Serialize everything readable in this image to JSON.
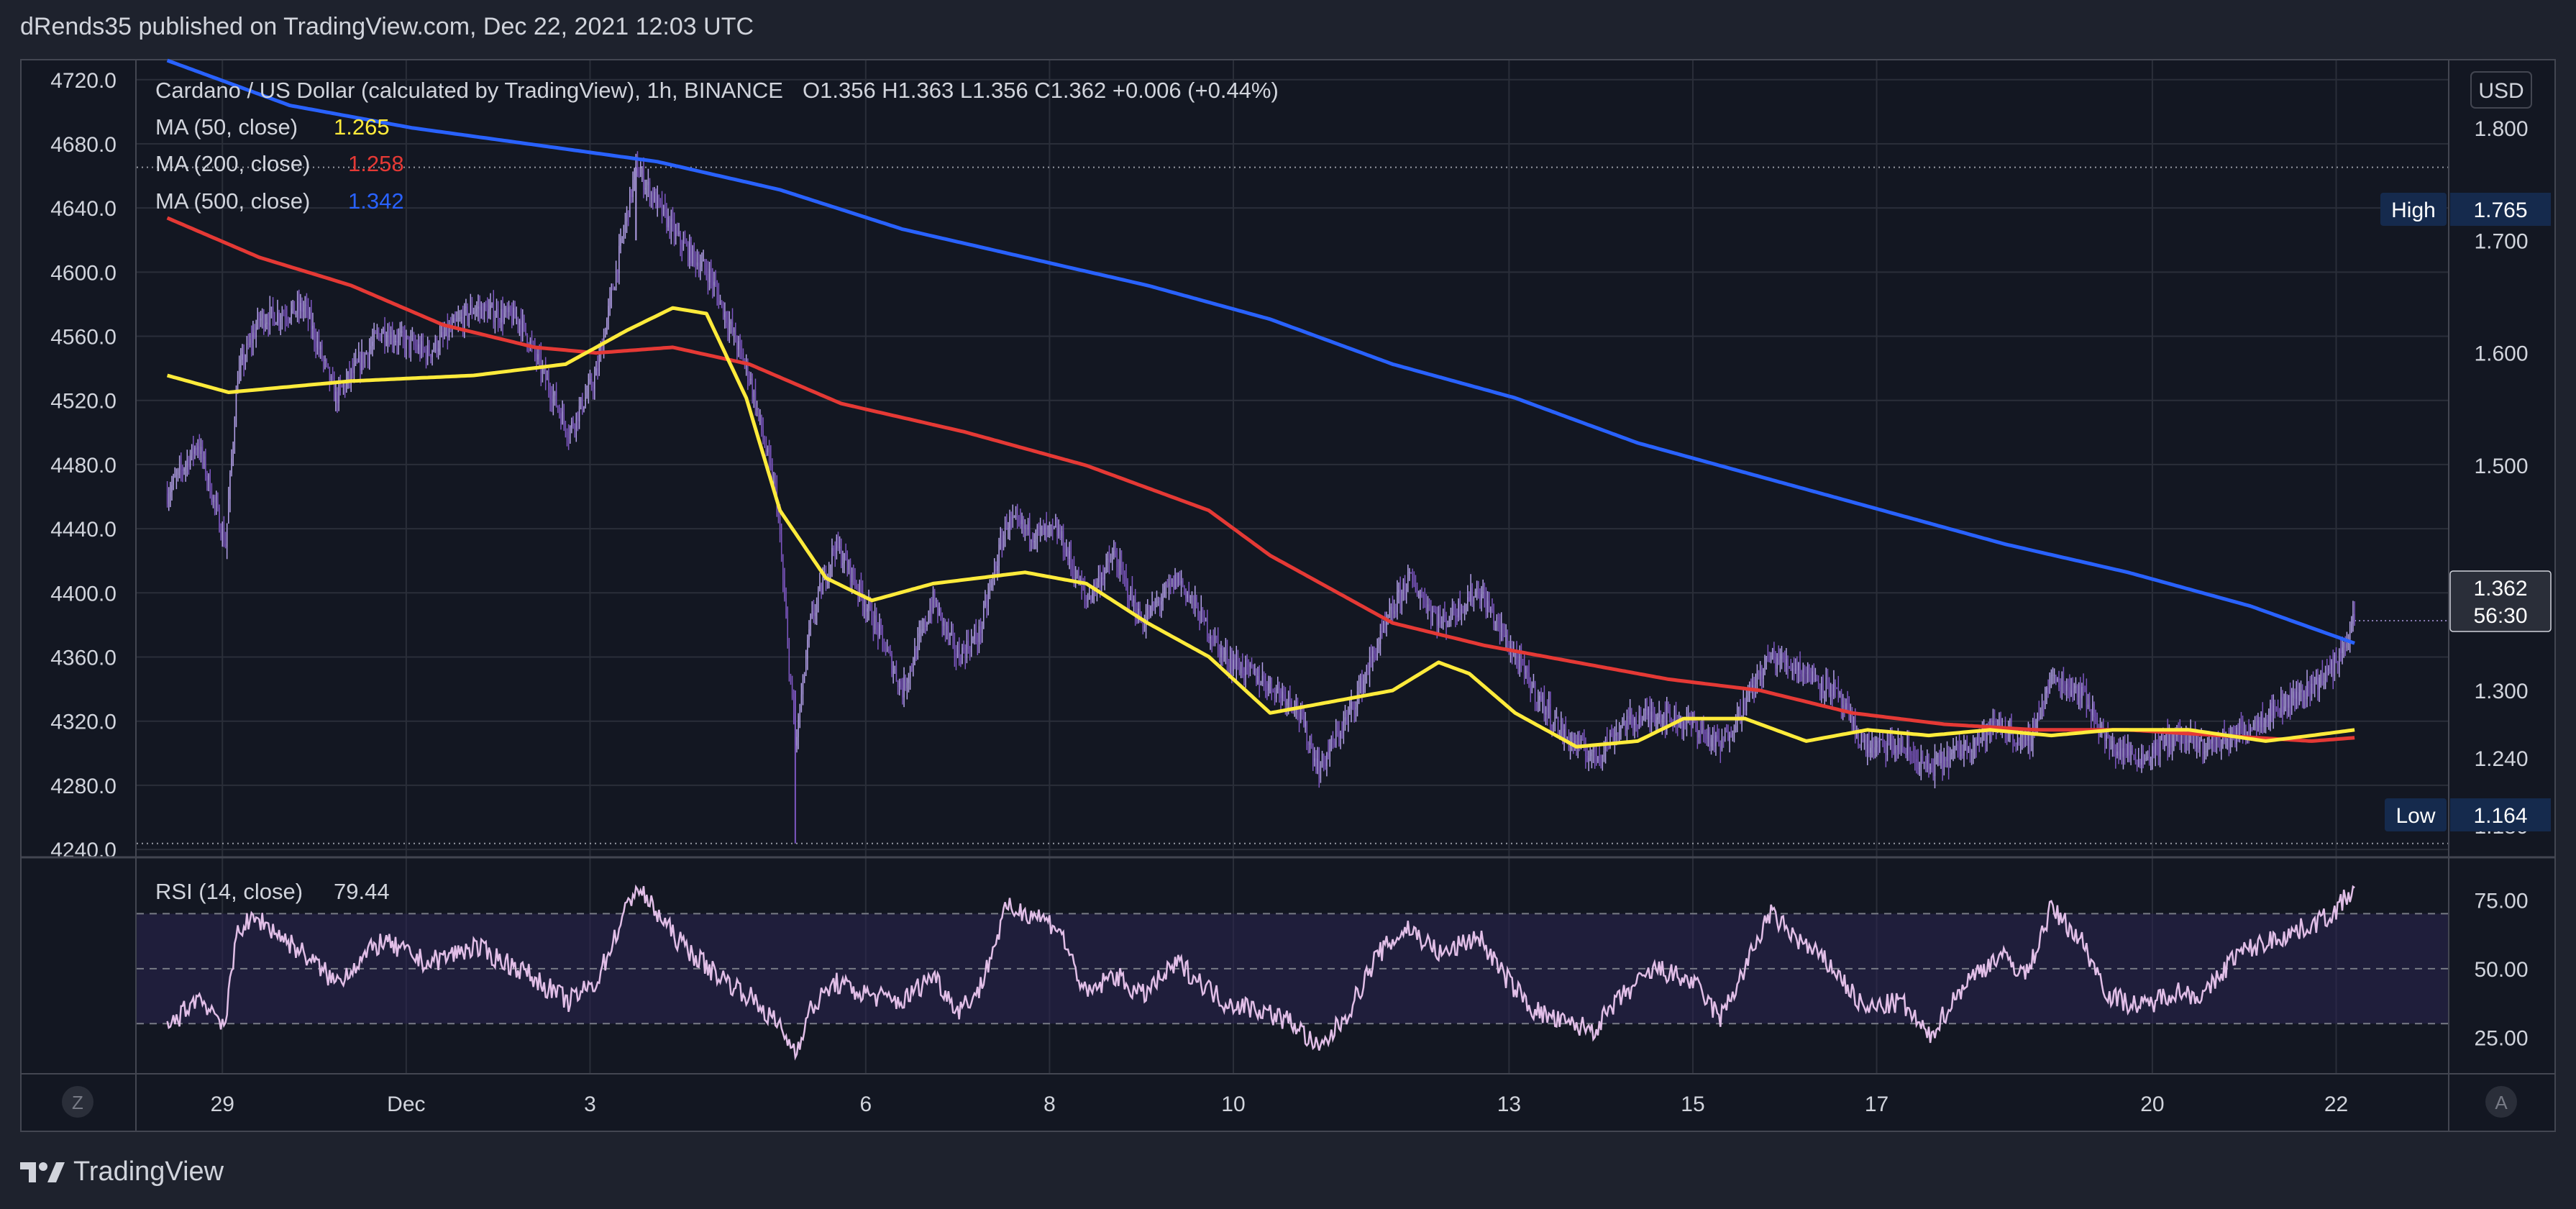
{
  "header": {
    "publisher": "dRends35 published on TradingView.com, Dec 22, 2021 12:03 UTC"
  },
  "footer": {
    "brand": "TradingView",
    "logo_icon": "tradingview-logo-icon"
  },
  "colors": {
    "background": "#131722",
    "grid": "#2a2e39",
    "up": "#b3a0e8",
    "down": "#7e57c2",
    "ma50": "#ffeb3b",
    "ma200": "#e53935",
    "ma500": "#2962ff",
    "rsi": "#e1bee7",
    "rsi_band": "#2a2450",
    "label_bg": "#152a4d"
  },
  "legend": {
    "title": "Cardano / US Dollar (calculated by TradingView), 1h, BINANCE",
    "ohlc": "O1.356  H1.363  L1.356  C1.362  +0.006 (+0.44%)",
    "ma50_label": "MA (50, close)",
    "ma50_value": "1.265",
    "ma200_label": "MA (200, close)",
    "ma200_value": "1.258",
    "ma500_label": "MA (500, close)",
    "ma500_value": "1.342",
    "rsi_label": "RSI (14, close)",
    "rsi_value": "79.44"
  },
  "buttons": {
    "currency": "USD",
    "z_label": "Z",
    "a_label": "A"
  },
  "markers": {
    "high_label": "High",
    "high_value": "1.765",
    "low_label": "Low",
    "low_value": "1.164",
    "last_price": "1.362",
    "countdown": "56:30"
  },
  "chart_data": {
    "type": "candlestick",
    "title": "Cardano / US Dollar (calculated by TradingView), 1h, BINANCE",
    "x_ticks": [
      "29",
      "Dec",
      "3",
      "6",
      "8",
      "10",
      "13",
      "15",
      "17",
      "20",
      "22"
    ],
    "x_tick_hours": [
      36,
      156,
      276,
      456,
      576,
      696,
      876,
      996,
      1116,
      1296,
      1416
    ],
    "x_range_hours": [
      -20,
      1489
    ],
    "left_axis": {
      "ticks": [
        "4720.0",
        "4680.0",
        "4640.0",
        "4600.0",
        "4560.0",
        "4520.0",
        "4480.0",
        "4440.0",
        "4400.0",
        "4360.0",
        "4320.0",
        "4280.0",
        "4240.0"
      ],
      "ylim": [
        4236,
        4732
      ]
    },
    "right_axis": {
      "ticks": [
        "1.800",
        "1.700",
        "1.600",
        "1.500",
        "1.400",
        "1.300",
        "1.240",
        "1.180"
      ],
      "ylim": [
        1.153,
        1.86
      ],
      "currency": "USD"
    },
    "high": 1.765,
    "low": 1.164,
    "last": 1.362,
    "price_anchors": [
      [
        0,
        1.475
      ],
      [
        20,
        1.52
      ],
      [
        38,
        1.43
      ],
      [
        46,
        1.58
      ],
      [
        60,
        1.63
      ],
      [
        90,
        1.64
      ],
      [
        110,
        1.56
      ],
      [
        140,
        1.62
      ],
      [
        170,
        1.6
      ],
      [
        200,
        1.64
      ],
      [
        230,
        1.63
      ],
      [
        262,
        1.53
      ],
      [
        280,
        1.58
      ],
      [
        306,
        1.765
      ],
      [
        334,
        1.7
      ],
      [
        354,
        1.67
      ],
      [
        380,
        1.58
      ],
      [
        398,
        1.47
      ],
      [
        410,
        1.25
      ],
      [
        420,
        1.36
      ],
      [
        436,
        1.43
      ],
      [
        448,
        1.4
      ],
      [
        462,
        1.36
      ],
      [
        480,
        1.3
      ],
      [
        500,
        1.38
      ],
      [
        516,
        1.33
      ],
      [
        530,
        1.35
      ],
      [
        548,
        1.45
      ],
      [
        566,
        1.44
      ],
      [
        582,
        1.44
      ],
      [
        600,
        1.38
      ],
      [
        618,
        1.42
      ],
      [
        636,
        1.36
      ],
      [
        660,
        1.4
      ],
      [
        690,
        1.33
      ],
      [
        714,
        1.31
      ],
      [
        736,
        1.29
      ],
      [
        752,
        1.23
      ],
      [
        772,
        1.28
      ],
      [
        790,
        1.34
      ],
      [
        810,
        1.4
      ],
      [
        832,
        1.36
      ],
      [
        856,
        1.39
      ],
      [
        872,
        1.35
      ],
      [
        892,
        1.3
      ],
      [
        912,
        1.26
      ],
      [
        932,
        1.24
      ],
      [
        950,
        1.27
      ],
      [
        972,
        1.28
      ],
      [
        996,
        1.27
      ],
      [
        1014,
        1.25
      ],
      [
        1030,
        1.29
      ],
      [
        1046,
        1.33
      ],
      [
        1066,
        1.32
      ],
      [
        1088,
        1.3
      ],
      [
        1108,
        1.25
      ],
      [
        1132,
        1.25
      ],
      [
        1150,
        1.23
      ],
      [
        1174,
        1.25
      ],
      [
        1196,
        1.27
      ],
      [
        1214,
        1.25
      ],
      [
        1230,
        1.31
      ],
      [
        1250,
        1.3
      ],
      [
        1268,
        1.25
      ],
      [
        1290,
        1.24
      ],
      [
        1310,
        1.26
      ],
      [
        1330,
        1.25
      ],
      [
        1350,
        1.26
      ],
      [
        1372,
        1.28
      ],
      [
        1396,
        1.3
      ],
      [
        1414,
        1.32
      ],
      [
        1428,
        1.362
      ]
    ],
    "ma50_anchors": [
      [
        0,
        1.58
      ],
      [
        40,
        1.565
      ],
      [
        120,
        1.575
      ],
      [
        200,
        1.58
      ],
      [
        260,
        1.59
      ],
      [
        300,
        1.62
      ],
      [
        330,
        1.64
      ],
      [
        352,
        1.635
      ],
      [
        378,
        1.56
      ],
      [
        400,
        1.46
      ],
      [
        430,
        1.4
      ],
      [
        460,
        1.38
      ],
      [
        500,
        1.395
      ],
      [
        560,
        1.405
      ],
      [
        600,
        1.395
      ],
      [
        640,
        1.36
      ],
      [
        680,
        1.33
      ],
      [
        720,
        1.28
      ],
      [
        760,
        1.29
      ],
      [
        800,
        1.3
      ],
      [
        830,
        1.325
      ],
      [
        850,
        1.315
      ],
      [
        880,
        1.28
      ],
      [
        920,
        1.25
      ],
      [
        960,
        1.255
      ],
      [
        990,
        1.275
      ],
      [
        1030,
        1.275
      ],
      [
        1070,
        1.255
      ],
      [
        1110,
        1.265
      ],
      [
        1150,
        1.26
      ],
      [
        1190,
        1.265
      ],
      [
        1230,
        1.26
      ],
      [
        1270,
        1.265
      ],
      [
        1320,
        1.265
      ],
      [
        1370,
        1.255
      ],
      [
        1400,
        1.26
      ],
      [
        1428,
        1.265
      ]
    ],
    "ma200_anchors": [
      [
        0,
        1.72
      ],
      [
        60,
        1.685
      ],
      [
        120,
        1.66
      ],
      [
        180,
        1.625
      ],
      [
        240,
        1.605
      ],
      [
        280,
        1.6
      ],
      [
        330,
        1.605
      ],
      [
        380,
        1.59
      ],
      [
        440,
        1.555
      ],
      [
        520,
        1.53
      ],
      [
        600,
        1.5
      ],
      [
        680,
        1.46
      ],
      [
        720,
        1.42
      ],
      [
        760,
        1.39
      ],
      [
        800,
        1.36
      ],
      [
        860,
        1.34
      ],
      [
        920,
        1.325
      ],
      [
        980,
        1.31
      ],
      [
        1040,
        1.3
      ],
      [
        1100,
        1.28
      ],
      [
        1160,
        1.27
      ],
      [
        1220,
        1.265
      ],
      [
        1280,
        1.265
      ],
      [
        1340,
        1.26
      ],
      [
        1400,
        1.255
      ],
      [
        1428,
        1.258
      ]
    ],
    "ma500_anchors": [
      [
        0,
        1.86
      ],
      [
        80,
        1.82
      ],
      [
        160,
        1.8
      ],
      [
        240,
        1.785
      ],
      [
        320,
        1.77
      ],
      [
        400,
        1.745
      ],
      [
        480,
        1.71
      ],
      [
        560,
        1.685
      ],
      [
        640,
        1.66
      ],
      [
        720,
        1.63
      ],
      [
        800,
        1.59
      ],
      [
        880,
        1.56
      ],
      [
        960,
        1.52
      ],
      [
        1040,
        1.49
      ],
      [
        1120,
        1.46
      ],
      [
        1200,
        1.43
      ],
      [
        1280,
        1.405
      ],
      [
        1360,
        1.375
      ],
      [
        1428,
        1.342
      ]
    ],
    "rsi": {
      "label": "RSI (14, close)",
      "value": 79.44,
      "ticks": [
        "75.00",
        "50.00",
        "25.00"
      ],
      "bands": [
        30,
        50,
        70
      ],
      "ylim": [
        12,
        90
      ],
      "anchors": [
        [
          0,
          28
        ],
        [
          20,
          40
        ],
        [
          38,
          30
        ],
        [
          46,
          65
        ],
        [
          60,
          68
        ],
        [
          90,
          55
        ],
        [
          110,
          45
        ],
        [
          140,
          60
        ],
        [
          170,
          52
        ],
        [
          200,
          58
        ],
        [
          230,
          50
        ],
        [
          262,
          38
        ],
        [
          280,
          45
        ],
        [
          306,
          80
        ],
        [
          334,
          60
        ],
        [
          354,
          50
        ],
        [
          380,
          40
        ],
        [
          398,
          30
        ],
        [
          410,
          20
        ],
        [
          420,
          35
        ],
        [
          436,
          45
        ],
        [
          448,
          42
        ],
        [
          462,
          40
        ],
        [
          480,
          38
        ],
        [
          500,
          48
        ],
        [
          516,
          35
        ],
        [
          530,
          42
        ],
        [
          548,
          72
        ],
        [
          566,
          70
        ],
        [
          582,
          65
        ],
        [
          600,
          40
        ],
        [
          618,
          48
        ],
        [
          636,
          40
        ],
        [
          660,
          52
        ],
        [
          690,
          38
        ],
        [
          714,
          35
        ],
        [
          736,
          30
        ],
        [
          752,
          20
        ],
        [
          772,
          35
        ],
        [
          790,
          55
        ],
        [
          810,
          65
        ],
        [
          832,
          55
        ],
        [
          856,
          62
        ],
        [
          872,
          48
        ],
        [
          892,
          35
        ],
        [
          912,
          30
        ],
        [
          932,
          28
        ],
        [
          950,
          40
        ],
        [
          972,
          50
        ],
        [
          996,
          45
        ],
        [
          1014,
          32
        ],
        [
          1030,
          50
        ],
        [
          1046,
          70
        ],
        [
          1066,
          60
        ],
        [
          1088,
          50
        ],
        [
          1108,
          35
        ],
        [
          1132,
          38
        ],
        [
          1150,
          25
        ],
        [
          1174,
          45
        ],
        [
          1196,
          55
        ],
        [
          1214,
          48
        ],
        [
          1230,
          72
        ],
        [
          1250,
          60
        ],
        [
          1268,
          40
        ],
        [
          1290,
          36
        ],
        [
          1310,
          42
        ],
        [
          1330,
          40
        ],
        [
          1350,
          55
        ],
        [
          1372,
          60
        ],
        [
          1396,
          65
        ],
        [
          1414,
          70
        ],
        [
          1428,
          79.44
        ]
      ]
    }
  }
}
